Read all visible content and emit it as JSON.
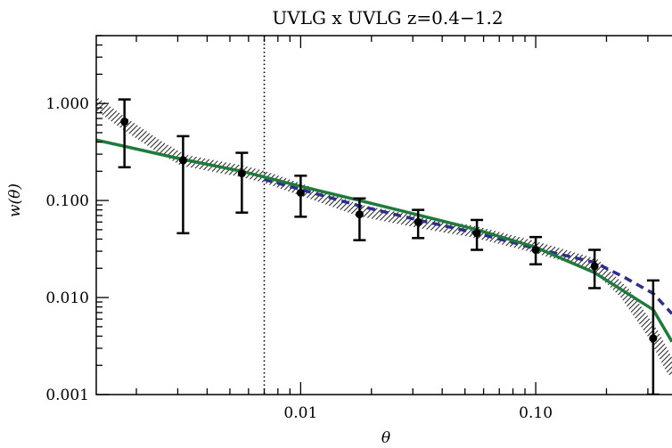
{
  "chart_data": {
    "type": "scatter",
    "title": "UVLG x UVLG z=0.4−1.2",
    "xlabel": "θ",
    "ylabel": "w(θ)",
    "xscale": "log",
    "yscale": "log",
    "xlim": [
      0.00135,
      0.38
    ],
    "ylim": [
      0.001,
      5.0
    ],
    "xticks": [
      0.01,
      0.1
    ],
    "xtick_labels": [
      "0.01",
      "0.10"
    ],
    "yticks": [
      0.001,
      0.01,
      0.1,
      1.0
    ],
    "ytick_labels": [
      "0.001",
      "0.010",
      "0.100",
      "1.000"
    ],
    "vline_x": 0.007,
    "series": [
      {
        "kind": "points_with_errorbars",
        "color": "#000000",
        "x": [
          0.00178,
          0.00316,
          0.00562,
          0.01,
          0.0178,
          0.0316,
          0.0562,
          0.1,
          0.178,
          0.316
        ],
        "y": [
          0.65,
          0.26,
          0.19,
          0.12,
          0.072,
          0.06,
          0.046,
          0.031,
          0.021,
          0.0038
        ],
        "yerr_low": [
          0.22,
          0.046,
          0.075,
          0.068,
          0.039,
          0.041,
          0.031,
          0.022,
          0.0125,
          0.001
        ],
        "yerr_high": [
          1.1,
          0.46,
          0.31,
          0.18,
          0.105,
          0.08,
          0.063,
          0.042,
          0.031,
          0.015
        ]
      },
      {
        "kind": "band",
        "color": "#555555",
        "x": [
          0.00135,
          0.00178,
          0.0025,
          0.00316,
          0.00562,
          0.007,
          0.01,
          0.0178,
          0.0316,
          0.0562,
          0.1,
          0.178,
          0.24,
          0.316,
          0.38
        ],
        "y": [
          1.0,
          0.62,
          0.36,
          0.26,
          0.2,
          0.175,
          0.13,
          0.079,
          0.06,
          0.047,
          0.033,
          0.022,
          0.011,
          0.0042,
          0.0018
        ]
      },
      {
        "kind": "line",
        "style": "dashed",
        "color": "#2e2e8c",
        "x": [
          0.007,
          0.01,
          0.0178,
          0.0316,
          0.0562,
          0.1,
          0.178,
          0.24,
          0.316,
          0.38
        ],
        "y": [
          0.165,
          0.13,
          0.088,
          0.063,
          0.046,
          0.032,
          0.023,
          0.016,
          0.011,
          0.0068
        ]
      },
      {
        "kind": "line",
        "style": "solid",
        "color": "#1f7a3c",
        "x": [
          0.00135,
          0.00316,
          0.00562,
          0.01,
          0.0178,
          0.0316,
          0.0562,
          0.1,
          0.178,
          0.316,
          0.38
        ],
        "y": [
          0.42,
          0.265,
          0.2,
          0.14,
          0.1,
          0.071,
          0.05,
          0.033,
          0.018,
          0.0075,
          0.0035
        ]
      }
    ]
  }
}
